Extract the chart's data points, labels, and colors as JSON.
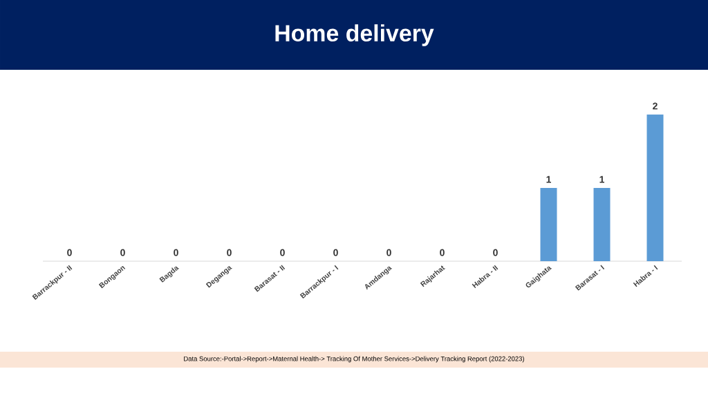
{
  "chart_data": {
    "type": "bar",
    "title": "Home delivery",
    "categories": [
      "Barrackpur - II",
      "Bongaon",
      "Bagda",
      "Deganga",
      "Barasat - II",
      "Barrackpur - I",
      "Amdanga",
      "Rajarhat",
      "Habra - II",
      "Gaighata",
      "Barasat - I",
      "Habra - I"
    ],
    "values": [
      0,
      0,
      0,
      0,
      0,
      0,
      0,
      0,
      0,
      1,
      1,
      2
    ],
    "color": "#5b9bd5",
    "data_labels": true,
    "annotations": [
      "Data Source:-Portal->Report->Maternal Health-> Tracking Of Mother Services->Delivery Tracking Report (2022-2023)"
    ]
  }
}
